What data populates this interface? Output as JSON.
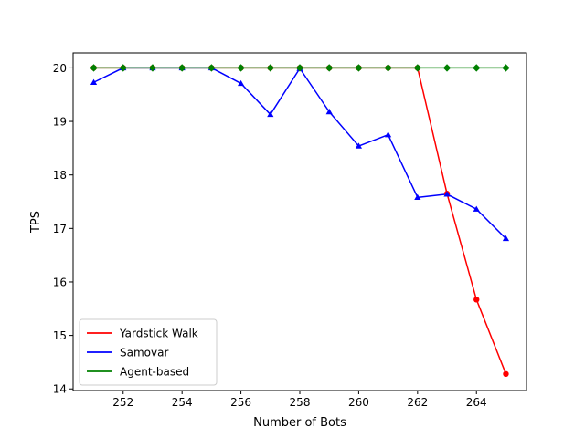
{
  "chart_data": {
    "type": "line",
    "title": "",
    "xlabel": "Number of Bots",
    "ylabel": "TPS",
    "xlim": [
      250.3,
      265.7
    ],
    "ylim": [
      13.97,
      20.28
    ],
    "grid": false,
    "legend_position": "lower-left",
    "xticks": [
      "252",
      "254",
      "256",
      "258",
      "260",
      "262",
      "264"
    ],
    "yticks": [
      "14",
      "15",
      "16",
      "17",
      "18",
      "19",
      "20"
    ],
    "x": [
      251,
      252,
      253,
      254,
      255,
      256,
      257,
      258,
      259,
      260,
      261,
      262,
      263,
      264,
      265
    ],
    "series": [
      {
        "name": "Yardstick Walk",
        "color": "#ff0000",
        "marker": "circle",
        "values": [
          20,
          20,
          20,
          20,
          20,
          20,
          20,
          20,
          20,
          20,
          20,
          20,
          17.65,
          15.67,
          14.28
        ]
      },
      {
        "name": "Samovar",
        "color": "#0000ff",
        "marker": "triangle",
        "values": [
          19.73,
          20,
          20,
          20,
          20,
          19.71,
          19.13,
          19.99,
          19.18,
          18.54,
          18.75,
          17.58,
          17.64,
          17.36,
          16.81
        ]
      },
      {
        "name": "Agent-based",
        "color": "#008000",
        "marker": "diamond",
        "values": [
          20,
          20,
          20,
          20,
          20,
          20,
          20,
          20,
          20,
          20,
          20,
          20,
          20,
          20,
          20
        ]
      }
    ]
  }
}
